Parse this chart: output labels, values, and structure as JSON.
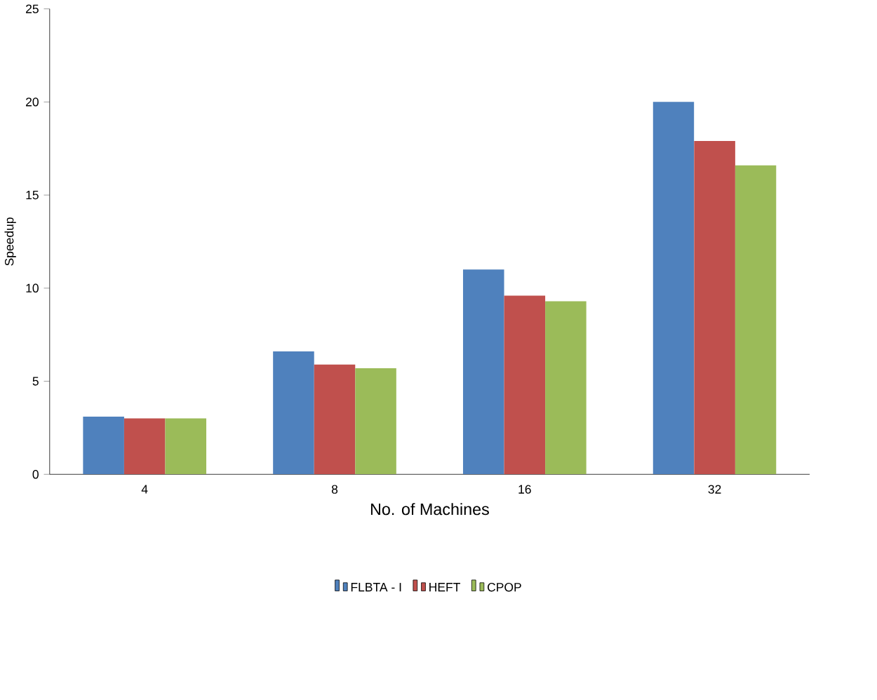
{
  "chart_data": {
    "type": "bar",
    "xlabel": "No. of Machines",
    "ylabel": "Speedup",
    "categories": [
      "4",
      "8",
      "16",
      "32"
    ],
    "series": [
      {
        "name": "FLBTA - I",
        "color": "#4f81bd",
        "values": [
          3.1,
          6.6,
          11.0,
          20.0
        ]
      },
      {
        "name": "HEFT",
        "color": "#c0504d",
        "values": [
          3.0,
          5.9,
          9.6,
          17.9
        ]
      },
      {
        "name": "CPOP",
        "color": "#9bbb59",
        "values": [
          3.0,
          5.7,
          9.3,
          16.6
        ]
      }
    ],
    "ylim": [
      0,
      25
    ],
    "yticks": [
      0,
      5,
      10,
      15,
      20,
      25
    ],
    "grid": false,
    "legend": "bottom"
  }
}
